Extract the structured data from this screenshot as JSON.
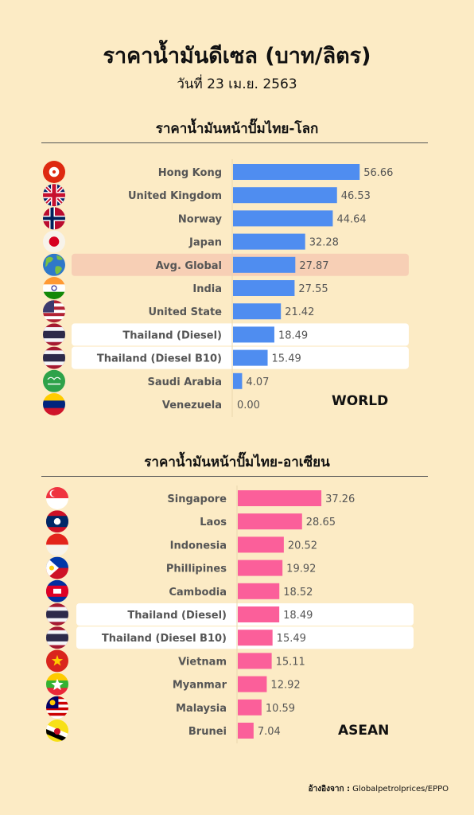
{
  "title": "ราคาน้ำมันดีเซล (บาท/ลิตร)",
  "subtitle": "วันที่ 23 เม.ย. 2563",
  "source_label": "อ้างอิงจาก :",
  "source_value": "Globalpetrolprices/EPPO",
  "chart_data": [
    {
      "type": "bar",
      "orientation": "horizontal",
      "title": "ราคาน้ำมันหน้าปั๊มไทย-โลก",
      "tag": "WORLD",
      "bar_color": "#4f8df0",
      "highlight_color": "#f7cfb5",
      "categories": [
        "Hong Kong",
        "United Kingdom",
        "Norway",
        "Japan",
        "Avg. Global",
        "India",
        "United State",
        "Thailand (Diesel)",
        "Thailand (Diesel B10)",
        "Saudi Arabia",
        "Venezuela"
      ],
      "values": [
        56.66,
        46.53,
        44.64,
        32.28,
        27.87,
        27.55,
        21.42,
        18.49,
        15.49,
        4.07,
        0.0
      ],
      "value_labels": [
        "56.66",
        "46.53",
        "44.64",
        "32.28",
        "27.87",
        "27.55",
        "21.42",
        "18.49",
        "15.49",
        "4.07",
        "0.00"
      ],
      "highlight": [
        "none",
        "none",
        "none",
        "none",
        "orange",
        "none",
        "none",
        "white",
        "white",
        "none",
        "none"
      ],
      "flags": [
        "hong-kong-flag-icon",
        "united-kingdom-flag-icon",
        "norway-flag-icon",
        "japan-flag-icon",
        "globe-icon",
        "india-flag-icon",
        "united-states-flag-icon",
        "thailand-flag-icon",
        "thailand-flag-icon",
        "saudi-arabia-flag-icon",
        "venezuela-flag-icon"
      ]
    },
    {
      "type": "bar",
      "orientation": "horizontal",
      "title": "ราคาน้ำมันหน้าปั๊มไทย-อาเซียน",
      "tag": "ASEAN",
      "bar_color": "#fb5f9a",
      "highlight_color": "#ffffff",
      "categories": [
        "Singapore",
        "Laos",
        "Indonesia",
        "Phillipines",
        "Cambodia",
        "Thailand (Diesel)",
        "Thailand (Diesel B10)",
        "Vietnam",
        "Myanmar",
        "Malaysia",
        "Brunei"
      ],
      "values": [
        37.26,
        28.65,
        20.52,
        19.92,
        18.52,
        18.49,
        15.49,
        15.11,
        12.92,
        10.59,
        7.04
      ],
      "value_labels": [
        "37.26",
        "28.65",
        "20.52",
        "19.92",
        "18.52",
        "18.49",
        "15.49",
        "15.11",
        "12.92",
        "10.59",
        "7.04"
      ],
      "highlight": [
        "none",
        "none",
        "none",
        "none",
        "none",
        "white",
        "white",
        "none",
        "none",
        "none",
        "none"
      ],
      "flags": [
        "singapore-flag-icon",
        "laos-flag-icon",
        "indonesia-flag-icon",
        "philippines-flag-icon",
        "cambodia-flag-icon",
        "thailand-flag-icon",
        "thailand-flag-icon",
        "vietnam-flag-icon",
        "myanmar-flag-icon",
        "malaysia-flag-icon",
        "brunei-flag-icon"
      ]
    }
  ]
}
